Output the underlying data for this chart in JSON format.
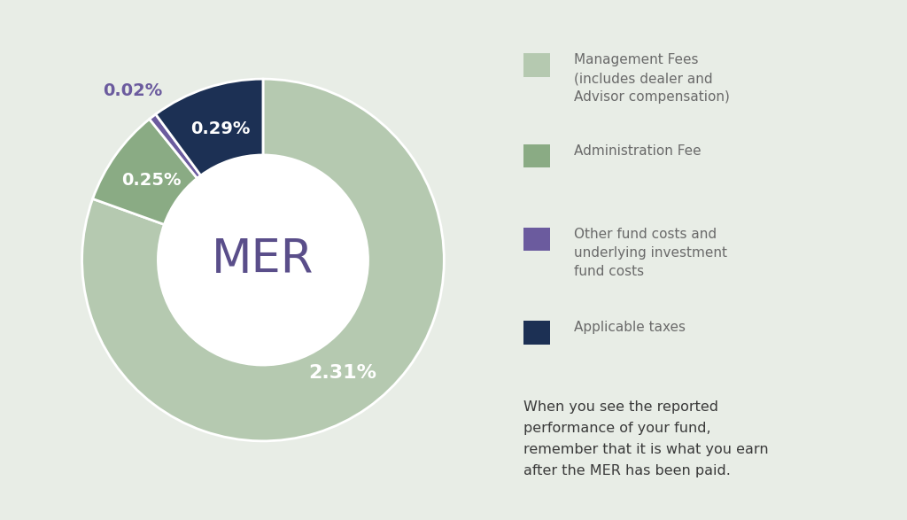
{
  "values": [
    2.31,
    0.25,
    0.02,
    0.29
  ],
  "colors": [
    "#b5c9b0",
    "#8aab84",
    "#6b5b9e",
    "#1c3054"
  ],
  "labels": [
    "2.31%",
    "0.25%",
    "0.02%",
    "0.29%"
  ],
  "label_colors": [
    "#ffffff",
    "#ffffff",
    "#6b5b9e",
    "#ffffff"
  ],
  "label_outside": [
    false,
    false,
    true,
    false
  ],
  "center_text": "MER",
  "center_color": "#5a4e8a",
  "background_color": "#e8ede6",
  "legend_items": [
    {
      "label": "Management Fees\n(includes dealer and\nAdvisor compensation)",
      "color": "#b5c9b0"
    },
    {
      "label": "Administration Fee",
      "color": "#8aab84"
    },
    {
      "label": "Other fund costs and\nunderlying investment\nfund costs",
      "color": "#6b5b9e"
    },
    {
      "label": "Applicable taxes",
      "color": "#1c3054"
    }
  ],
  "bottom_text": "When you see the reported\nperformance of your fund,\nremember that it is what you earn\nafter the MER has been paid.",
  "bottom_text_color": "#3a3a3a",
  "legend_text_color": "#6a6a6a",
  "startangle": 90
}
